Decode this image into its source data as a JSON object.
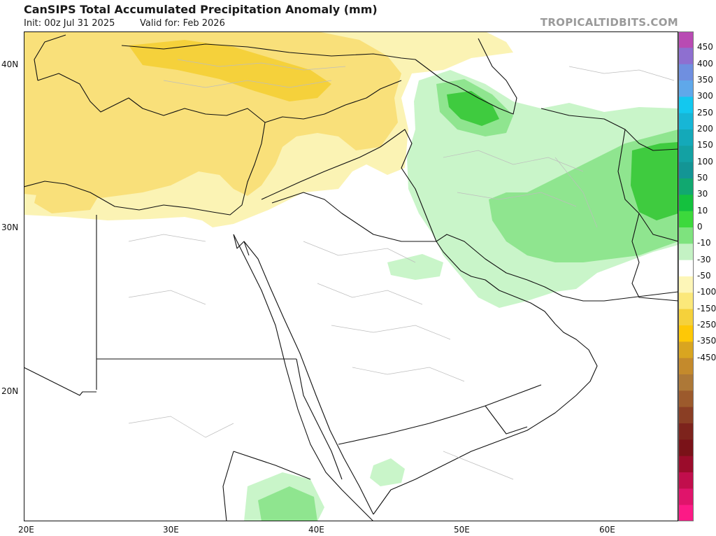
{
  "header": {
    "title": "CanSIPS Total Accumulated Precipitation Anomaly (mm)",
    "init": "Init: 00z Jul 31 2025",
    "valid": "Valid for: Feb 2026",
    "brand": "TROPICALTIDBITS.COM"
  },
  "axes": {
    "lat_labels": [
      "40N",
      "30N",
      "20N"
    ],
    "lon_labels": [
      "20E",
      "30E",
      "40E",
      "50E",
      "60E"
    ]
  },
  "colorbar": {
    "labels": [
      "450",
      "400",
      "350",
      "300",
      "250",
      "200",
      "150",
      "100",
      "50",
      "30",
      "10",
      "0",
      "-10",
      "-30",
      "-50",
      "-100",
      "-150",
      "-250",
      "-350",
      "-450"
    ],
    "colors": [
      "#b84bb3",
      "#8e6fd0",
      "#6f8fe0",
      "#5fa8ea",
      "#13c8ef",
      "#17b6d6",
      "#14a9b9",
      "#13a1a3",
      "#139595",
      "#11a870",
      "#14c13e",
      "#3cd93c",
      "#7ee37e",
      "#c4f2c4",
      "#ffffff",
      "#fdf6b8",
      "#fbe87a",
      "#f5d13b",
      "#fec806",
      "#d9a520",
      "#c48a2c",
      "#ad7837",
      "#9c5a2c",
      "#8a3e24",
      "#7d231c",
      "#7a1218",
      "#9b0c2b",
      "#c10e4c",
      "#e0146b",
      "#fc1a86"
    ],
    "legend_colors": {
      "wet_light": "#c9f5c9",
      "wet_mid": "#8fe58f",
      "wet_strong": "#3fcb3f",
      "dry_light": "#fbf3b4",
      "dry_mid": "#f9e07a",
      "dry_strong": "#f4cc3a"
    }
  }
}
